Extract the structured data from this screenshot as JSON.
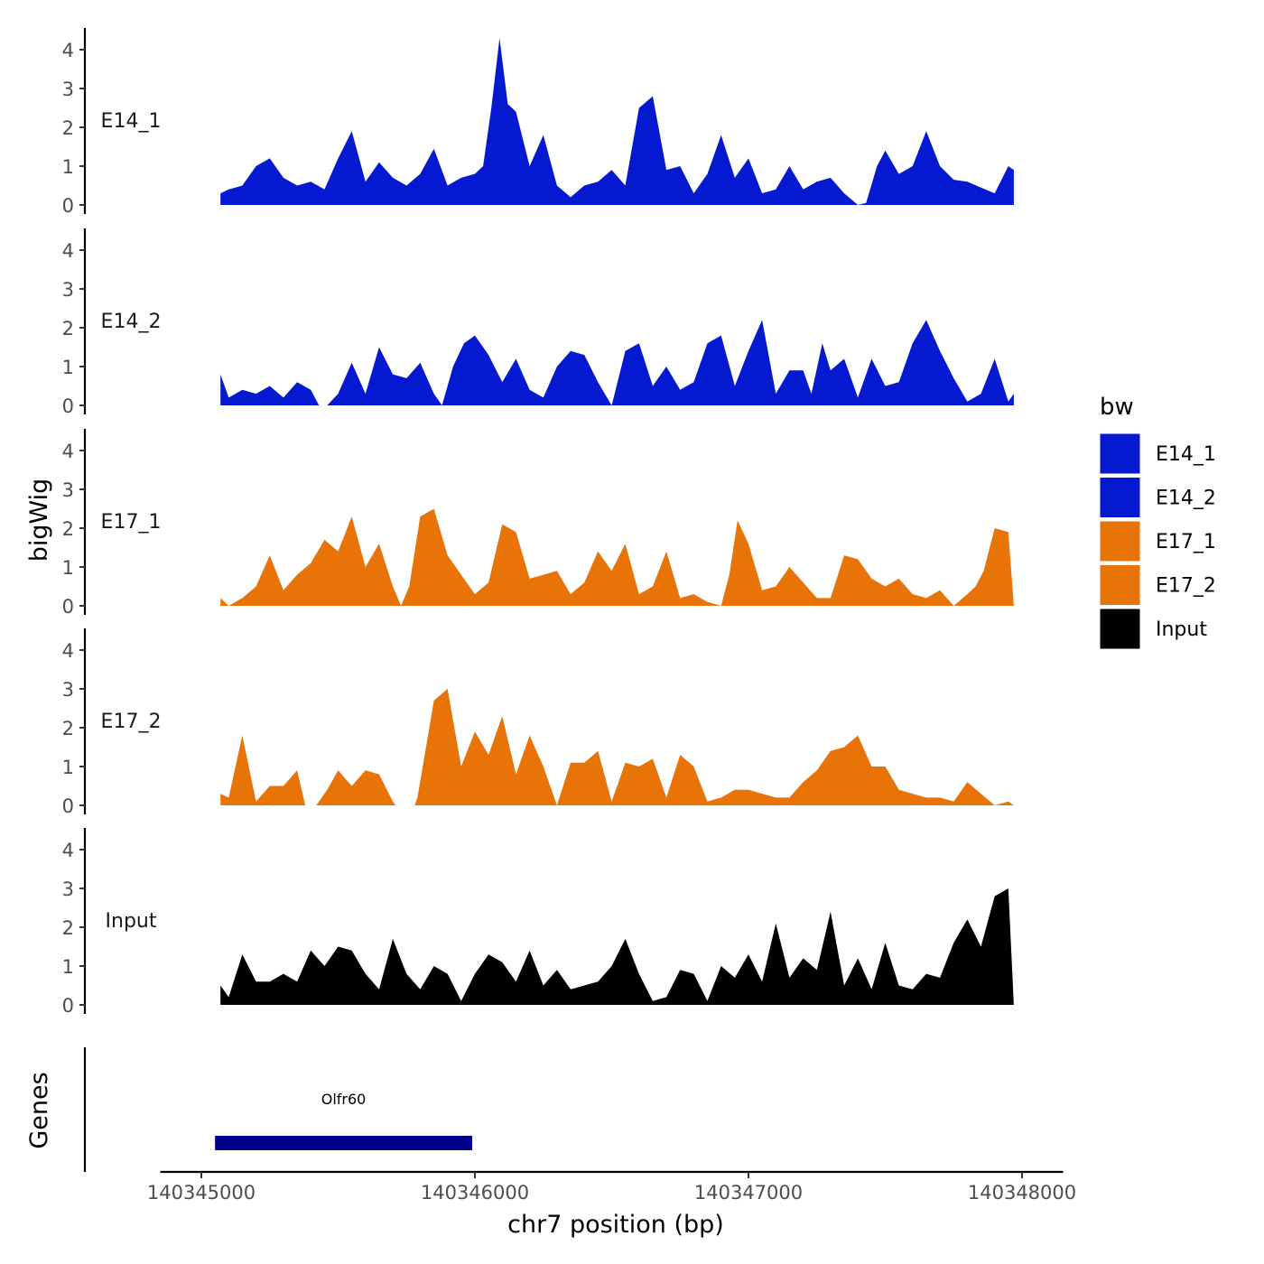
{
  "chart_data": {
    "type": "area",
    "title": "",
    "ylabel": "bigWig",
    "xlabel": "chr7 position (bp)",
    "gene_panel_label": "Genes",
    "ylim": [
      0,
      4.5
    ],
    "yticks": [
      "0",
      "1",
      "2",
      "3",
      "4"
    ],
    "xlim": [
      140344850,
      140348150
    ],
    "xticks": [
      {
        "value": 140345000,
        "label": "140345000"
      },
      {
        "value": 140346000,
        "label": "140346000"
      },
      {
        "value": 140347000,
        "label": "140347000"
      },
      {
        "value": 140348000,
        "label": "140348000"
      }
    ],
    "legend": {
      "title": "bw",
      "position": "right",
      "entries": [
        {
          "label": "E14_1",
          "color": "#0519D0"
        },
        {
          "label": "E14_2",
          "color": "#0519D0"
        },
        {
          "label": "E17_1",
          "color": "#E87306"
        },
        {
          "label": "E17_2",
          "color": "#E87306"
        },
        {
          "label": "Input",
          "color": "#000000"
        }
      ]
    },
    "series": [
      {
        "name": "E14_1",
        "color": "#0519D0",
        "x": [
          140345070,
          140345100,
          140345150,
          140345200,
          140345250,
          140345300,
          140345350,
          140345400,
          140345450,
          140345500,
          140345550,
          140345600,
          140345650,
          140345700,
          140345750,
          140345800,
          140345850,
          140345900,
          140345950,
          140346000,
          140346030,
          140346060,
          140346090,
          140346120,
          140346150,
          140346200,
          140346250,
          140346300,
          140346350,
          140346400,
          140346450,
          140346500,
          140346550,
          140346600,
          140346650,
          140346700,
          140346750,
          140346800,
          140346850,
          140346900,
          140346950,
          140347000,
          140347050,
          140347100,
          140347150,
          140347200,
          140347250,
          140347300,
          140347350,
          140347400,
          140347430,
          140347470,
          140347500,
          140347550,
          140347600,
          140347650,
          140347700,
          140347750,
          140347800,
          140347850,
          140347900,
          140347950,
          140347970
        ],
        "values": [
          0.3,
          0.4,
          0.5,
          1.0,
          1.2,
          0.7,
          0.5,
          0.6,
          0.4,
          1.2,
          1.9,
          0.6,
          1.1,
          0.7,
          0.5,
          0.8,
          1.45,
          0.5,
          0.7,
          0.8,
          1.0,
          2.5,
          4.3,
          2.6,
          2.4,
          1.0,
          1.8,
          0.5,
          0.2,
          0.5,
          0.6,
          0.9,
          0.5,
          2.5,
          2.8,
          0.9,
          1.0,
          0.3,
          0.8,
          1.8,
          0.7,
          1.2,
          0.3,
          0.4,
          1.0,
          0.4,
          0.6,
          0.7,
          0.3,
          0.0,
          0.05,
          1.0,
          1.4,
          0.8,
          1.0,
          1.9,
          1.0,
          0.65,
          0.6,
          0.45,
          0.3,
          1.0,
          0.9
        ]
      },
      {
        "name": "E14_2",
        "color": "#0519D0",
        "x": [
          140345070,
          140345100,
          140345150,
          140345200,
          140345250,
          140345300,
          140345350,
          140345400,
          140345430,
          140345460,
          140345500,
          140345550,
          140345600,
          140345650,
          140345700,
          140345750,
          140345800,
          140345850,
          140345880,
          140345920,
          140345960,
          140346000,
          140346050,
          140346100,
          140346150,
          140346200,
          140346250,
          140346300,
          140346350,
          140346400,
          140346450,
          140346500,
          140346550,
          140346600,
          140346650,
          140346700,
          140346750,
          140346800,
          140346850,
          140346900,
          140346950,
          140347000,
          140347050,
          140347100,
          140347150,
          140347200,
          140347230,
          140347270,
          140347300,
          140347350,
          140347400,
          140347450,
          140347500,
          140347550,
          140347600,
          140347650,
          140347700,
          140347750,
          140347800,
          140347850,
          140347900,
          140347950,
          140347970
        ],
        "values": [
          0.8,
          0.2,
          0.4,
          0.3,
          0.5,
          0.2,
          0.6,
          0.4,
          0.0,
          0.0,
          0.3,
          1.1,
          0.3,
          1.5,
          0.8,
          0.7,
          1.1,
          0.3,
          0.0,
          1.0,
          1.6,
          1.8,
          1.3,
          0.6,
          1.2,
          0.4,
          0.2,
          1.0,
          1.4,
          1.3,
          0.6,
          0.0,
          1.4,
          1.6,
          0.5,
          1.0,
          0.4,
          0.6,
          1.6,
          1.8,
          0.5,
          1.4,
          2.2,
          0.3,
          0.9,
          0.9,
          0.3,
          1.6,
          0.9,
          1.2,
          0.2,
          1.2,
          0.5,
          0.6,
          1.6,
          2.2,
          1.4,
          0.7,
          0.1,
          0.3,
          1.2,
          0.1,
          0.3
        ]
      },
      {
        "name": "E17_1",
        "color": "#E87306",
        "x": [
          140345070,
          140345100,
          140345150,
          140345200,
          140345250,
          140345300,
          140345350,
          140345400,
          140345450,
          140345500,
          140345550,
          140345600,
          140345650,
          140345700,
          140345730,
          140345760,
          140345800,
          140345850,
          140345900,
          140345950,
          140346000,
          140346050,
          140346100,
          140346150,
          140346200,
          140346250,
          140346300,
          140346350,
          140346400,
          140346450,
          140346500,
          140346550,
          140346600,
          140346650,
          140346700,
          140346750,
          140346800,
          140346850,
          140346900,
          140346930,
          140346960,
          140347000,
          140347050,
          140347100,
          140347150,
          140347200,
          140347250,
          140347300,
          140347350,
          140347400,
          140347450,
          140347500,
          140347550,
          140347600,
          140347650,
          140347700,
          140347750,
          140347800,
          140347830,
          140347860,
          140347900,
          140347950,
          140347970
        ],
        "values": [
          0.2,
          0.0,
          0.2,
          0.5,
          1.3,
          0.4,
          0.8,
          1.1,
          1.7,
          1.4,
          2.3,
          1.0,
          1.6,
          0.5,
          0.0,
          0.5,
          2.3,
          2.5,
          1.3,
          0.8,
          0.3,
          0.6,
          2.1,
          1.9,
          0.7,
          0.8,
          0.9,
          0.3,
          0.6,
          1.4,
          0.9,
          1.6,
          0.3,
          0.5,
          1.4,
          0.2,
          0.3,
          0.1,
          0.0,
          0.8,
          2.2,
          1.6,
          0.4,
          0.5,
          1.0,
          0.6,
          0.2,
          0.2,
          1.3,
          1.2,
          0.7,
          0.5,
          0.7,
          0.3,
          0.2,
          0.4,
          0.0,
          0.3,
          0.5,
          0.9,
          2.0,
          1.9,
          0.0
        ]
      },
      {
        "name": "E17_2",
        "color": "#E87306",
        "x": [
          140345070,
          140345100,
          140345150,
          140345200,
          140345250,
          140345300,
          140345350,
          140345380,
          140345420,
          140345460,
          140345500,
          140345550,
          140345600,
          140345650,
          140345700,
          140345710,
          140345780,
          140345790,
          140345850,
          140345900,
          140345950,
          140346000,
          140346050,
          140346100,
          140346150,
          140346200,
          140346250,
          140346300,
          140346350,
          140346400,
          140346450,
          140346500,
          140346550,
          140346600,
          140346650,
          140346700,
          140346750,
          140346800,
          140346850,
          140346900,
          140346950,
          140347000,
          140347050,
          140347100,
          140347150,
          140347200,
          140347250,
          140347300,
          140347350,
          140347400,
          140347450,
          140347500,
          140347550,
          140347600,
          140347650,
          140347700,
          140347750,
          140347800,
          140347850,
          140347900,
          140347950,
          140347970
        ],
        "values": [
          0.3,
          0.2,
          1.8,
          0.1,
          0.5,
          0.5,
          0.9,
          0.0,
          0.0,
          0.4,
          0.9,
          0.5,
          0.9,
          0.8,
          0.1,
          0.0,
          0.0,
          0.2,
          2.7,
          3.0,
          1.0,
          1.9,
          1.3,
          2.3,
          0.8,
          1.8,
          1.0,
          0.0,
          1.1,
          1.1,
          1.4,
          0.1,
          1.1,
          1.0,
          1.2,
          0.2,
          1.3,
          1.0,
          0.1,
          0.2,
          0.4,
          0.4,
          0.3,
          0.2,
          0.2,
          0.6,
          0.9,
          1.4,
          1.5,
          1.8,
          1.0,
          1.0,
          0.4,
          0.3,
          0.2,
          0.2,
          0.1,
          0.6,
          0.3,
          0.0,
          0.1,
          0.0
        ]
      },
      {
        "name": "Input",
        "color": "#000000",
        "x": [
          140345070,
          140345100,
          140345150,
          140345200,
          140345250,
          140345300,
          140345350,
          140345400,
          140345450,
          140345500,
          140345550,
          140345600,
          140345650,
          140345700,
          140345750,
          140345800,
          140345850,
          140345900,
          140345950,
          140346000,
          140346050,
          140346100,
          140346150,
          140346200,
          140346250,
          140346300,
          140346350,
          140346400,
          140346450,
          140346500,
          140346550,
          140346600,
          140346650,
          140346700,
          140346750,
          140346800,
          140346850,
          140346900,
          140346950,
          140347000,
          140347050,
          140347100,
          140347150,
          140347200,
          140347250,
          140347300,
          140347350,
          140347400,
          140347450,
          140347500,
          140347550,
          140347600,
          140347650,
          140347700,
          140347750,
          140347800,
          140347850,
          140347900,
          140347950,
          140347970
        ],
        "values": [
          0.5,
          0.2,
          1.3,
          0.6,
          0.6,
          0.8,
          0.6,
          1.4,
          1.0,
          1.5,
          1.4,
          0.8,
          0.4,
          1.7,
          0.8,
          0.4,
          1.0,
          0.8,
          0.1,
          0.8,
          1.3,
          1.1,
          0.6,
          1.4,
          0.5,
          0.9,
          0.4,
          0.5,
          0.6,
          1.0,
          1.7,
          0.8,
          0.1,
          0.2,
          0.9,
          0.8,
          0.1,
          1.0,
          0.7,
          1.3,
          0.6,
          2.1,
          0.7,
          1.2,
          0.9,
          2.4,
          0.5,
          1.2,
          0.4,
          1.6,
          0.5,
          0.4,
          0.8,
          0.7,
          1.6,
          2.2,
          1.5,
          2.8,
          3.0,
          0.0
        ]
      }
    ],
    "genes": [
      {
        "name": "Olfr60",
        "start": 140345050,
        "end": 140345990,
        "color": "#00008B"
      }
    ]
  }
}
